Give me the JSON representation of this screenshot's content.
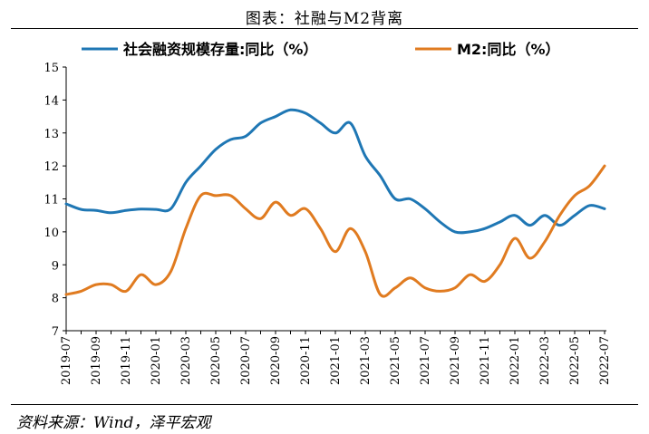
{
  "header": {
    "title": "图表：社融与M2背离"
  },
  "footer": {
    "source": "资料来源：Wind，泽平宏观"
  },
  "chart_data": {
    "type": "line",
    "title": "",
    "xlabel": "",
    "ylabel": "",
    "ylim": [
      7,
      15
    ],
    "yticks": [
      7,
      8,
      9,
      10,
      11,
      12,
      13,
      14,
      15
    ],
    "grid": false,
    "legend_position": "top",
    "x": [
      "2019-07",
      "2019-08",
      "2019-09",
      "2019-10",
      "2019-11",
      "2019-12",
      "2020-01",
      "2020-02",
      "2020-03",
      "2020-04",
      "2020-05",
      "2020-06",
      "2020-07",
      "2020-08",
      "2020-09",
      "2020-10",
      "2020-11",
      "2020-12",
      "2021-01",
      "2021-02",
      "2021-03",
      "2021-04",
      "2021-05",
      "2021-06",
      "2021-07",
      "2021-08",
      "2021-09",
      "2021-10",
      "2021-11",
      "2021-12",
      "2022-01",
      "2022-02",
      "2022-03",
      "2022-04",
      "2022-05",
      "2022-06",
      "2022-07"
    ],
    "xtick_labels": [
      "2019-07",
      "2019-09",
      "2019-11",
      "2020-01",
      "2020-03",
      "2020-05",
      "2020-07",
      "2020-09",
      "2020-11",
      "2021-01",
      "2021-03",
      "2021-05",
      "2021-07",
      "2021-09",
      "2021-11",
      "2022-01",
      "2022-03",
      "2022-05",
      "2022-07"
    ],
    "series": [
      {
        "name": "社会融资规模存量:同比（%）",
        "color": "#1f77b4",
        "values": [
          10.85,
          10.68,
          10.65,
          10.58,
          10.65,
          10.69,
          10.68,
          10.7,
          11.5,
          12.0,
          12.5,
          12.8,
          12.9,
          13.3,
          13.5,
          13.7,
          13.6,
          13.3,
          13.0,
          13.3,
          12.3,
          11.7,
          11.0,
          11.0,
          10.7,
          10.3,
          10.0,
          10.0,
          10.1,
          10.3,
          10.5,
          10.2,
          10.5,
          10.2,
          10.5,
          10.8,
          10.7
        ]
      },
      {
        "name": "M2:同比（%）",
        "color": "#e07b20",
        "values": [
          8.1,
          8.2,
          8.4,
          8.4,
          8.2,
          8.7,
          8.4,
          8.8,
          10.1,
          11.1,
          11.1,
          11.1,
          10.7,
          10.4,
          10.9,
          10.5,
          10.7,
          10.1,
          9.4,
          10.1,
          9.4,
          8.1,
          8.3,
          8.6,
          8.3,
          8.2,
          8.3,
          8.7,
          8.5,
          9.0,
          9.8,
          9.2,
          9.7,
          10.5,
          11.1,
          11.4,
          12.0
        ]
      }
    ]
  }
}
